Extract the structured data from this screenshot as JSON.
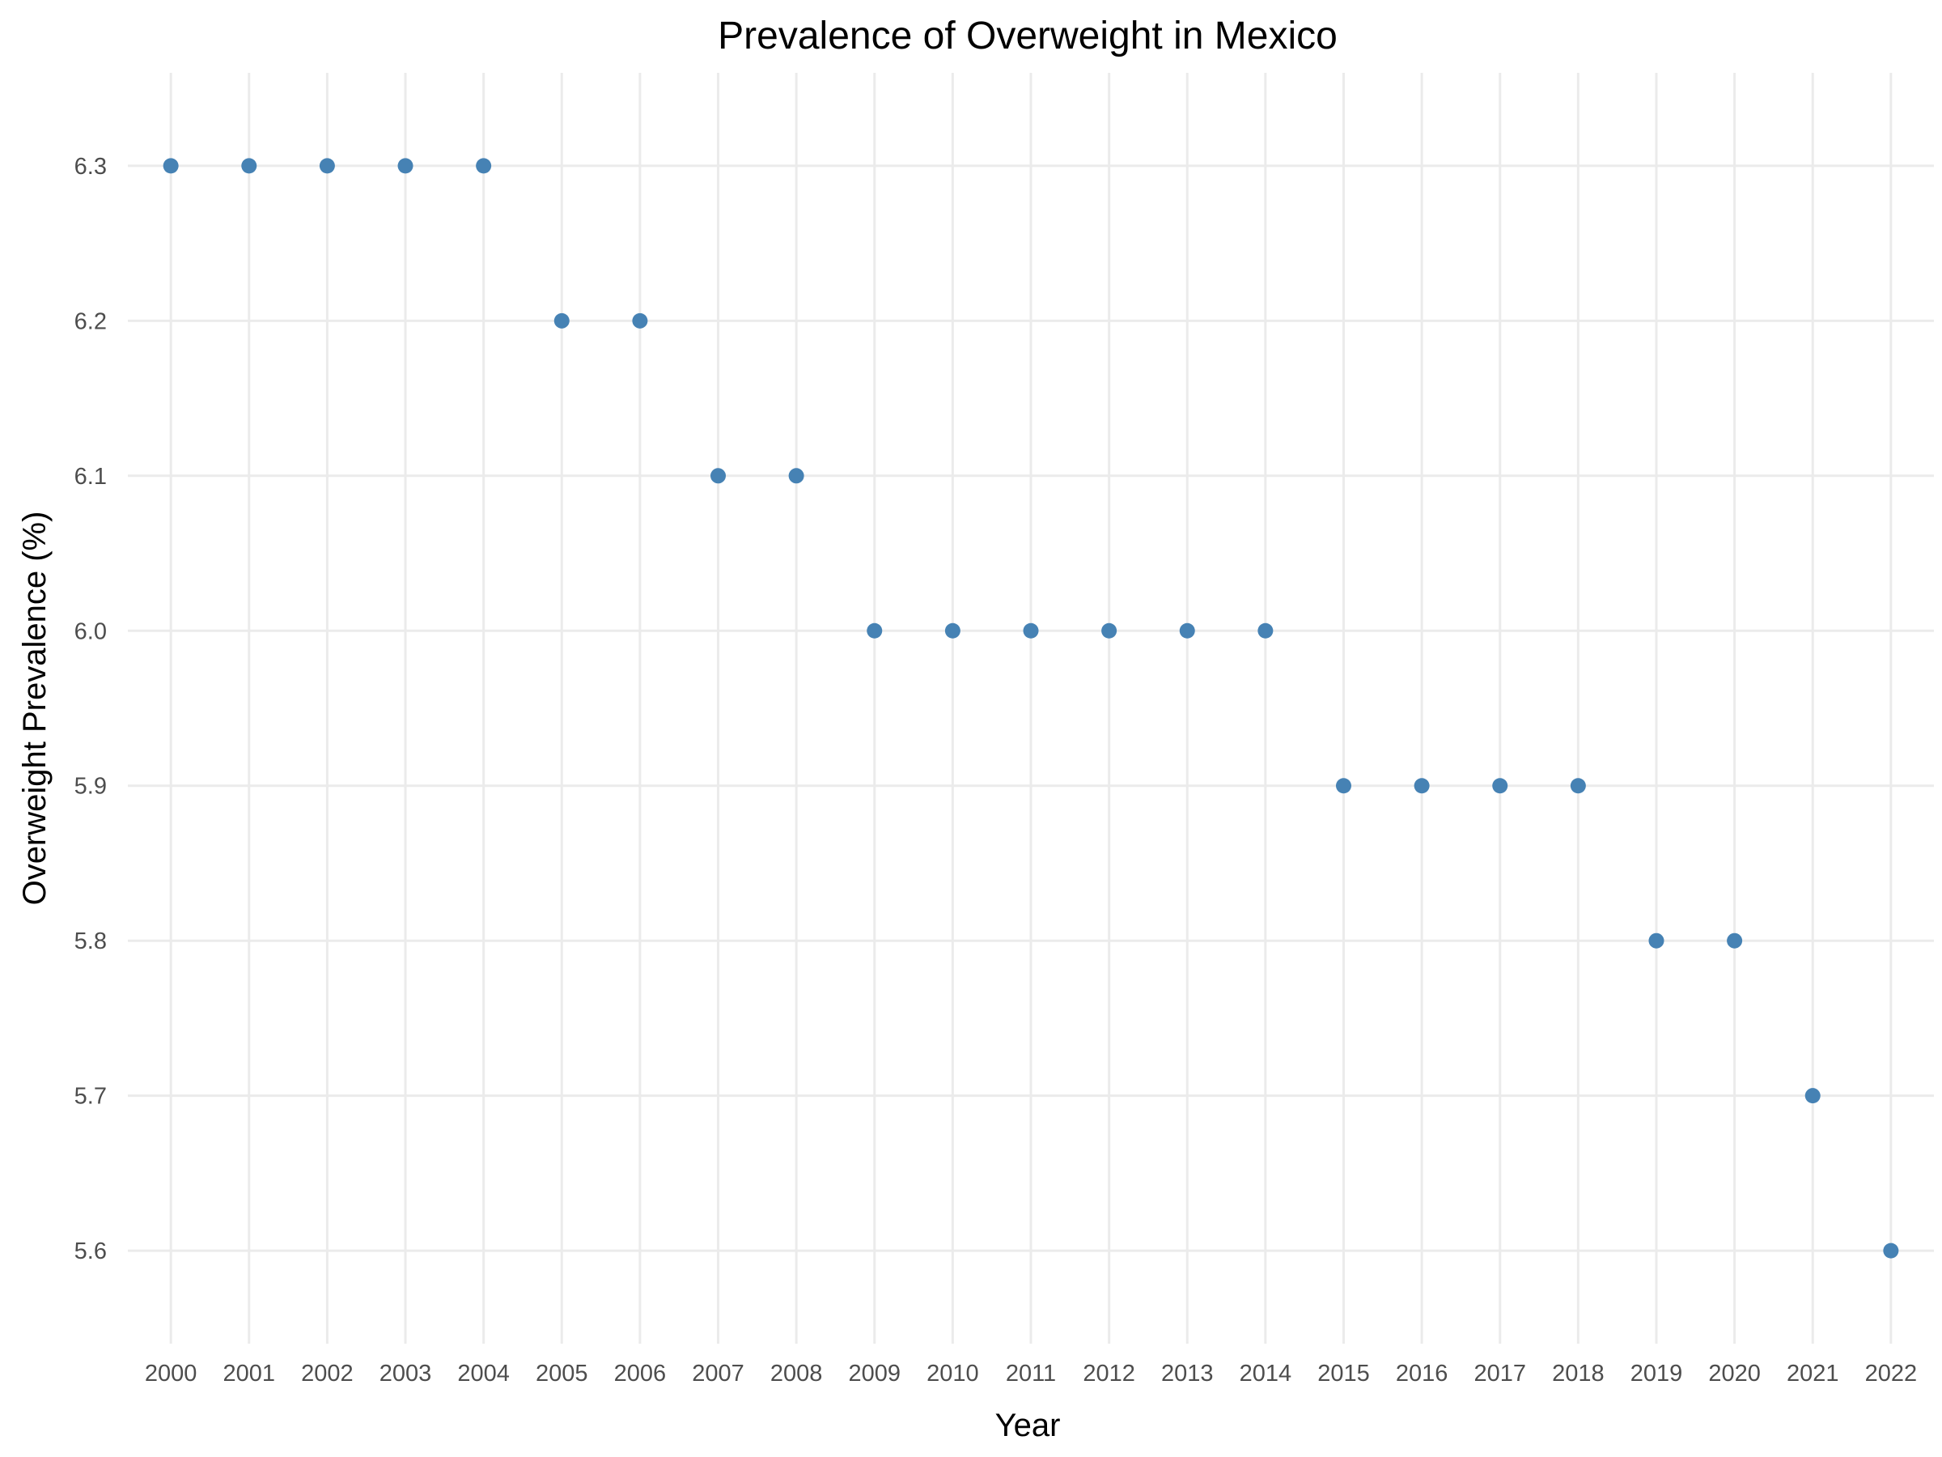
{
  "chart_data": {
    "type": "scatter",
    "title": "Prevalence of Overweight in Mexico",
    "xlabel": "Year",
    "ylabel": "Overweight Prevalence (%)",
    "x": [
      2000,
      2001,
      2002,
      2003,
      2004,
      2005,
      2006,
      2007,
      2008,
      2009,
      2010,
      2011,
      2012,
      2013,
      2014,
      2015,
      2016,
      2017,
      2018,
      2019,
      2020,
      2021,
      2022
    ],
    "y": [
      6.3,
      6.3,
      6.3,
      6.3,
      6.3,
      6.2,
      6.2,
      6.1,
      6.1,
      6.0,
      6.0,
      6.0,
      6.0,
      6.0,
      6.0,
      5.9,
      5.9,
      5.9,
      5.9,
      5.8,
      5.8,
      5.7,
      5.6
    ],
    "yticks": [
      "6.3",
      "6.2",
      "6.1",
      "6.0",
      "5.9",
      "5.8",
      "5.7",
      "5.6"
    ],
    "ylim": [
      5.54,
      6.36
    ],
    "xlim": [
      1999.45,
      2022.55
    ],
    "grid": true,
    "legend": "none",
    "point_color": "#4682b4",
    "grid_color": "#ebebeb"
  }
}
